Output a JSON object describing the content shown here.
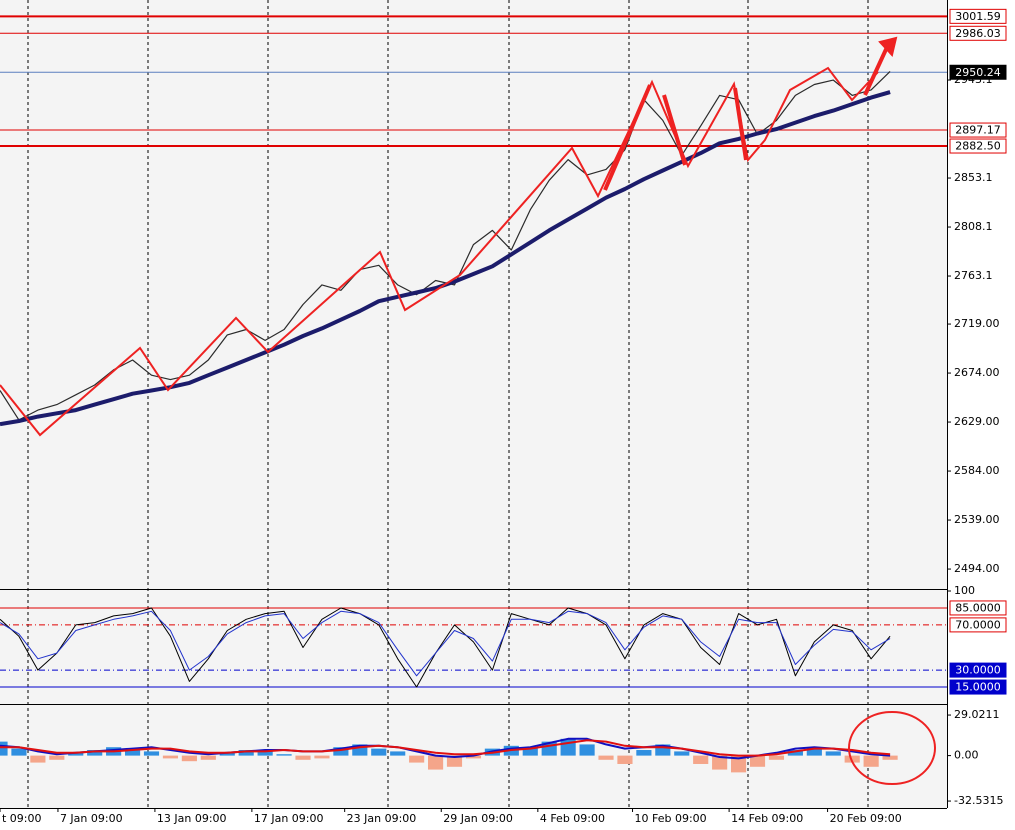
{
  "chart_data": [
    {
      "type": "line",
      "xlim": [
        0,
        49.9
      ],
      "ylim": [
        2476.6,
        3016.6
      ],
      "yticks": [
        {
          "value": 2494,
          "label": "2494.00"
        },
        {
          "value": 2539,
          "label": "2539.00"
        },
        {
          "value": 2584,
          "label": "2584.00"
        },
        {
          "value": 2629,
          "label": "2629.00"
        },
        {
          "value": 2674,
          "label": "2674.00"
        },
        {
          "value": 2719,
          "label": "2719.00"
        },
        2763.1,
        2808.1,
        2853.1,
        2943.1
      ],
      "series": [
        {
          "color": "#2b2b2b",
          "width": 1.2,
          "values": [
            2658,
            2631,
            2640,
            2645,
            2654,
            2663,
            2677,
            2686,
            2672,
            2668,
            2672,
            2686,
            2709,
            2714,
            2704,
            2714,
            2737,
            2755,
            2750,
            2769,
            2773,
            2755,
            2746,
            2759,
            2755,
            2792,
            2805,
            2787,
            2824,
            2851,
            2870,
            2856,
            2861,
            2879,
            2925,
            2906,
            2874,
            2901,
            2929,
            2925,
            2893,
            2906,
            2929,
            2939,
            2943,
            2929,
            2934,
            2951
          ]
        },
        {
          "color": "#1c1c6b",
          "width": 4,
          "values": [
            2627,
            2630,
            2634,
            2637,
            2640,
            2645,
            2650,
            2655,
            2658,
            2661,
            2665,
            2672,
            2679,
            2686,
            2693,
            2700,
            2708,
            2715,
            2723,
            2731,
            2740,
            2744,
            2748,
            2752,
            2758,
            2765,
            2772,
            2783,
            2794,
            2805,
            2815,
            2825,
            2835,
            2843,
            2852,
            2860,
            2868,
            2876,
            2885,
            2889,
            2894,
            2898,
            2904,
            2910,
            2915,
            2921,
            2927,
            2932
          ]
        }
      ],
      "levels": [
        {
          "value": 3001.59,
          "color": "#e00000",
          "width": 2,
          "box": "outline"
        },
        {
          "value": 2986.03,
          "color": "#e00000",
          "width": 1,
          "box": "outline"
        },
        {
          "value": 2950.24,
          "color": "#5b7fbf",
          "width": 1,
          "box": "filled"
        },
        {
          "value": 2897.17,
          "color": "#e00000",
          "width": 1,
          "box": "outline"
        },
        {
          "value": 2882.5,
          "label": "2882.50",
          "color": "#e00000",
          "width": 2,
          "box": "outline"
        }
      ]
    },
    {
      "type": "line",
      "xlim": [
        0,
        49.9
      ],
      "ylim": [
        0,
        100
      ],
      "yticks": [
        100
      ],
      "series": [
        {
          "color": "#000000",
          "width": 1,
          "values": [
            75,
            60,
            30,
            45,
            70,
            72,
            78,
            80,
            85,
            60,
            20,
            40,
            65,
            75,
            80,
            82,
            50,
            75,
            85,
            80,
            70,
            40,
            15,
            45,
            70,
            55,
            30,
            80,
            75,
            70,
            85,
            80,
            70,
            40,
            70,
            80,
            75,
            50,
            35,
            80,
            70,
            75,
            25,
            55,
            70,
            65,
            40,
            60
          ]
        },
        {
          "color": "#2233cc",
          "width": 1,
          "values": [
            72,
            62,
            40,
            45,
            65,
            70,
            75,
            78,
            82,
            65,
            30,
            42,
            62,
            72,
            78,
            80,
            58,
            72,
            82,
            80,
            72,
            48,
            25,
            45,
            65,
            58,
            38,
            75,
            75,
            72,
            82,
            80,
            72,
            48,
            68,
            78,
            75,
            55,
            42,
            75,
            72,
            72,
            35,
            52,
            66,
            64,
            48,
            58
          ]
        }
      ],
      "levels": [
        {
          "value": 85,
          "label": "85.0000",
          "color": "#e00000",
          "width": 1,
          "box": "outline"
        },
        {
          "value": 70,
          "label": "70.0000",
          "color": "#e00000",
          "width": 1,
          "box": "outline",
          "dash": true
        },
        {
          "value": 30,
          "label": "30.0000",
          "color": "#0000cc",
          "width": 1,
          "box": "filled",
          "dash": true
        },
        {
          "value": 15,
          "label": "15.0000",
          "color": "#0000cc",
          "width": 1,
          "box": "filled"
        }
      ]
    },
    {
      "type": "bar",
      "xlim": [
        0,
        49.9
      ],
      "ylim": [
        -37.5,
        35.5
      ],
      "yticks": [
        29.0211,
        {
          "value": 0,
          "label": "0.00"
        },
        -32.5315
      ],
      "values": [
        10,
        5,
        -5,
        -3,
        2,
        4,
        6,
        5,
        3,
        -2,
        -4,
        -3,
        2,
        4,
        3,
        1,
        -3,
        -2,
        6,
        8,
        5,
        3,
        -5,
        -10,
        -8,
        -2,
        5,
        7,
        6,
        10,
        12,
        8,
        -3,
        -6,
        4,
        8,
        3,
        -6,
        -10,
        -12,
        -8,
        -3,
        4,
        6,
        3,
        -5,
        -8,
        -3
      ],
      "color": "#2f8fe0",
      "negative_color": "#f4a58a",
      "series": [
        {
          "color": "#1010c0",
          "width": 2,
          "values": [
            7,
            6,
            3,
            1,
            2,
            3,
            4,
            5,
            6,
            4,
            2,
            1,
            2,
            3,
            4,
            4,
            3,
            3,
            5,
            7,
            7,
            6,
            3,
            0,
            -1,
            0,
            3,
            5,
            6,
            9,
            12,
            12,
            8,
            5,
            6,
            7,
            5,
            2,
            -1,
            -2,
            0,
            2,
            5,
            6,
            5,
            3,
            1,
            0
          ]
        },
        {
          "color": "#e01010",
          "width": 2,
          "values": [
            6,
            6,
            4,
            2,
            2,
            3,
            3,
            4,
            5,
            5,
            3,
            2,
            2,
            3,
            3,
            4,
            3,
            3,
            4,
            6,
            7,
            6,
            4,
            2,
            1,
            1,
            2,
            4,
            5,
            7,
            9,
            11,
            10,
            7,
            6,
            6,
            5,
            3,
            1,
            0,
            0,
            1,
            3,
            5,
            5,
            4,
            2,
            1
          ]
        }
      ],
      "xticks": [
        {
          "value": 0,
          "label": "t 09:00"
        },
        {
          "value": 3.06,
          "label": "7 Jan 09:00"
        },
        {
          "value": 8.18,
          "label": "13 Jan 09:00"
        },
        {
          "value": 13.3,
          "label": "17 Jan 09:00"
        },
        {
          "value": 18.2,
          "label": "23 Jan 09:00"
        },
        {
          "value": 23.3,
          "label": "29 Jan 09:00"
        },
        {
          "value": 28.4,
          "label": "4 Feb 09:00"
        },
        {
          "value": 33.4,
          "label": "10 Feb 09:00"
        },
        {
          "value": 38.5,
          "label": "14 Feb 09:00"
        },
        {
          "value": 43.7,
          "label": "20 Feb 09:00"
        }
      ]
    }
  ]
}
